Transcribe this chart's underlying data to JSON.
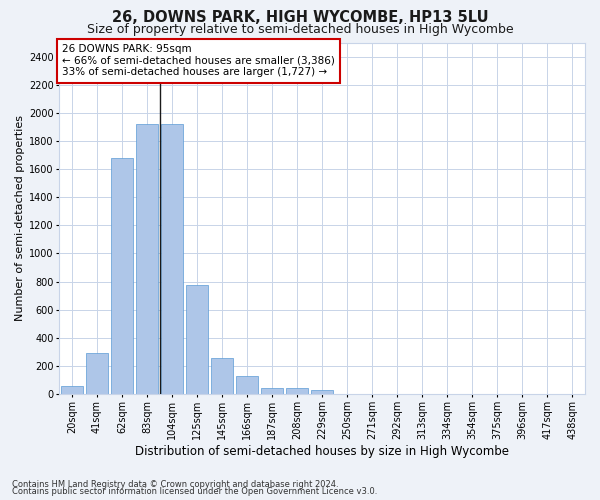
{
  "title": "26, DOWNS PARK, HIGH WYCOMBE, HP13 5LU",
  "subtitle": "Size of property relative to semi-detached houses in High Wycombe",
  "xlabel": "Distribution of semi-detached houses by size in High Wycombe",
  "ylabel": "Number of semi-detached properties",
  "bar_values": [
    55,
    290,
    1680,
    1920,
    1920,
    775,
    255,
    130,
    40,
    40,
    30,
    0,
    0,
    0,
    0,
    0,
    0,
    0,
    0,
    0,
    0
  ],
  "bar_labels": [
    "20sqm",
    "41sqm",
    "62sqm",
    "83sqm",
    "104sqm",
    "125sqm",
    "145sqm",
    "166sqm",
    "187sqm",
    "208sqm",
    "229sqm",
    "250sqm",
    "271sqm",
    "292sqm",
    "313sqm",
    "334sqm",
    "354sqm",
    "375sqm",
    "396sqm",
    "417sqm",
    "438sqm"
  ],
  "vline_x": 3.5,
  "highlight_color": "#5b9bd5",
  "normal_color": "#aec6e8",
  "bar_edge_color": "#5b9bd5",
  "annotation_text": "26 DOWNS PARK: 95sqm\n← 66% of semi-detached houses are smaller (3,386)\n33% of semi-detached houses are larger (1,727) →",
  "annotation_box_color": "#ffffff",
  "annotation_box_edge_color": "#cc0000",
  "ylim": [
    0,
    2500
  ],
  "yticks": [
    0,
    200,
    400,
    600,
    800,
    1000,
    1200,
    1400,
    1600,
    1800,
    2000,
    2200,
    2400
  ],
  "footer_line1": "Contains HM Land Registry data © Crown copyright and database right 2024.",
  "footer_line2": "Contains public sector information licensed under the Open Government Licence v3.0.",
  "background_color": "#eef2f8",
  "plot_background_color": "#ffffff",
  "grid_color": "#c8d4e8",
  "title_fontsize": 10.5,
  "subtitle_fontsize": 9,
  "tick_fontsize": 7,
  "ylabel_fontsize": 8,
  "xlabel_fontsize": 8.5,
  "footer_fontsize": 6,
  "annotation_fontsize": 7.5
}
